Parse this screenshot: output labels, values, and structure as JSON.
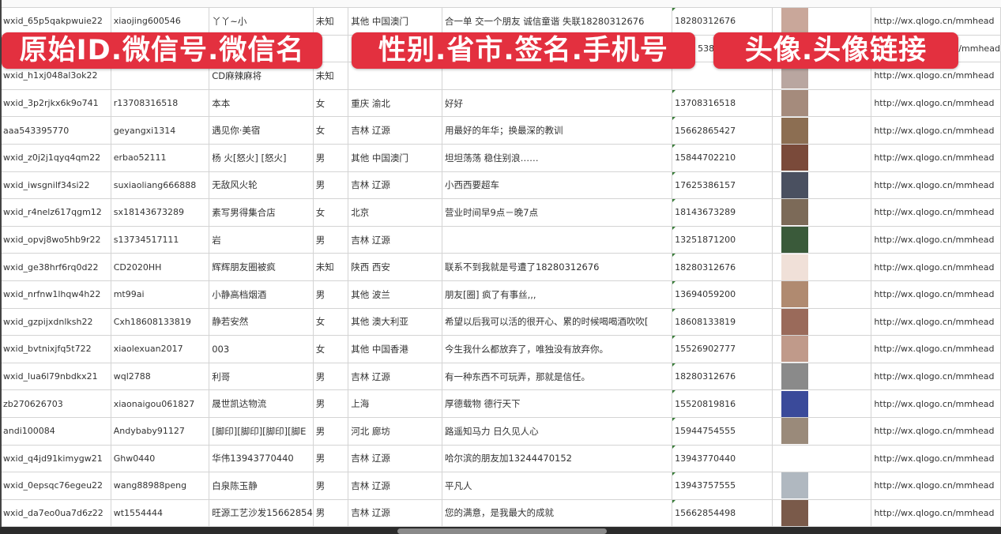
{
  "overlays": [
    "原始ID.微信号.微信名",
    "性别.省市.签名.手机号",
    "头像.头像链接"
  ],
  "colors": {
    "overlay": "#e3303f",
    "grid": "#d4d4d4"
  },
  "rows": [
    {
      "id": "wxid_65p5qakpwuie22",
      "wechat": "xiaojing600546",
      "name": "丫丫~小",
      "gender": "未知",
      "region": "其他 中国澳门",
      "signature": "合一单 交一个朋友 诚信童谐 失联18280312676",
      "phone": "18280312676",
      "avatar": "#c9a79a",
      "link": "http://wx.qlogo.cn/mmhead"
    },
    {
      "id": "",
      "wechat": "",
      "name": "",
      "gender": "",
      "region": "",
      "signature": "",
      "phone": "5386",
      "avatar": "#6a7fb0",
      "link": "/mmhead"
    },
    {
      "id": "wxid_h1xj048al3ok22",
      "wechat": "",
      "name": "CD麻辣麻将",
      "gender": "未知",
      "region": "",
      "signature": "",
      "phone": "",
      "avatar": "#b9a6a0",
      "link": "http://wx.qlogo.cn/mmhead"
    },
    {
      "id": "wxid_3p2rjkx6k9o741",
      "wechat": "r13708316518",
      "name": "本本",
      "gender": "女",
      "region": "重庆 渝北",
      "signature": "好好",
      "phone": "13708316518",
      "avatar": "#a58b7c",
      "link": "http://wx.qlogo.cn/mmhead"
    },
    {
      "id": "aaa543395770",
      "wechat": "geyangxi1314",
      "name": "遇见你·美宿",
      "gender": "女",
      "region": "吉林 辽源",
      "signature": "用最好的年华；换最深的教训",
      "phone": "15662865427",
      "avatar": "#8c6e52",
      "link": "http://wx.qlogo.cn/mmhead"
    },
    {
      "id": "wxid_z0j2j1qyq4qm22",
      "wechat": "erbao52111",
      "name": "杨 火[怒火] [怒火]",
      "gender": "男",
      "region": "其他 中国澳门",
      "signature": "坦坦荡荡 稳住别浪……",
      "phone": "15844702210",
      "avatar": "#7a4a3a",
      "link": "http://wx.qlogo.cn/mmhead"
    },
    {
      "id": "wxid_iwsgnilf34si22",
      "wechat": "suxiaoliang666888",
      "name": "无敌风火轮",
      "gender": "男",
      "region": "吉林 辽源",
      "signature": "小西西要超车",
      "phone": "17625386157",
      "avatar": "#4a5060",
      "link": "http://wx.qlogo.cn/mmhead"
    },
    {
      "id": "wxid_r4nelz617qgm12",
      "wechat": "sx18143673289",
      "name": "素写男得集合店",
      "gender": "女",
      "region": "北京",
      "signature": "营业时间早9点－晚7点",
      "phone": "18143673289",
      "avatar": "#7c6a58",
      "link": "http://wx.qlogo.cn/mmhead"
    },
    {
      "id": "wxid_opvj8wo5hb9r22",
      "wechat": "s13734517111",
      "name": "岩",
      "gender": "男",
      "region": "吉林 辽源",
      "signature": "",
      "phone": "13251871200",
      "avatar": "#3a5a3a",
      "link": "http://wx.qlogo.cn/mmhead"
    },
    {
      "id": "wxid_ge38hrf6rq0d22",
      "wechat": "CD2020HH",
      "name": "辉辉朋友圈被疯",
      "gender": "未知",
      "region": "陕西 西安",
      "signature": "联系不到我就是号遭了18280312676",
      "phone": "18280312676",
      "avatar": "#f0e0d8",
      "link": "http://wx.qlogo.cn/mmhead"
    },
    {
      "id": "wxid_nrfnw1lhqw4h22",
      "wechat": "mt99ai",
      "name": "小静高档烟酒",
      "gender": "男",
      "region": "其他 波兰",
      "signature": "朋友[圈] 疯了有事丝,,,",
      "phone": "13694059200",
      "avatar": "#b08a70",
      "link": "http://wx.qlogo.cn/mmhead"
    },
    {
      "id": "wxid_gzpijxdnlksh22",
      "wechat": "Cxh18608133819",
      "name": "静若安然",
      "gender": "女",
      "region": "其他 澳大利亚",
      "signature": "希望以后我可以活的很开心、累的时候喝喝酒吹吹[",
      "phone": "18608133819",
      "avatar": "#9a6a5a",
      "link": "http://wx.qlogo.cn/mmhead"
    },
    {
      "id": "wxid_bvtnixjfq5t722",
      "wechat": "xiaolexuan2017",
      "name": "003",
      "gender": "女",
      "region": "其他 中国香港",
      "signature": "今生我什么都放弃了，唯独没有放弃你。",
      "phone": "15526902777",
      "avatar": "#c09a8a",
      "link": "http://wx.qlogo.cn/mmhead"
    },
    {
      "id": "wxid_lua6l79nbdkx21",
      "wechat": "wql2788",
      "name": "利哥",
      "gender": "男",
      "region": "吉林 辽源",
      "signature": "有一种东西不可玩弄，那就是信任。",
      "phone": "18280312676",
      "avatar": "#8a8a8a",
      "link": "http://wx.qlogo.cn/mmhead"
    },
    {
      "id": "zb270626703",
      "wechat": "xiaonaigou061827",
      "name": "晟世凯达物流",
      "gender": "男",
      "region": "上海",
      "signature": "厚德载物 德行天下",
      "phone": "15520819816",
      "avatar": "#3a4a9a",
      "link": "http://wx.qlogo.cn/mmhead"
    },
    {
      "id": "andi100084",
      "wechat": "Andybaby91127",
      "name": "[脚印][脚印][脚印][脚E",
      "gender": "男",
      "region": "河北 廊坊",
      "signature": "路遥知马力 日久见人心",
      "phone": "15944754555",
      "avatar": "#9a8a7a",
      "link": "http://wx.qlogo.cn/mmhead"
    },
    {
      "id": "wxid_q4jd91kimygw21",
      "wechat": "Ghw0440",
      "name": "华伟13943770440",
      "gender": "男",
      "region": "吉林 辽源",
      "signature": "哈尔滨的朋友加13244470152",
      "phone": "13943770440",
      "avatar": "#ffffff",
      "link": "http://wx.qlogo.cn/mmhead"
    },
    {
      "id": "wxid_0epsqc76egeu22",
      "wechat": "wang88988peng",
      "name": "白泉陈玉静",
      "gender": "男",
      "region": "吉林 辽源",
      "signature": "平凡人",
      "phone": "13943757555",
      "avatar": "#b0b8c0",
      "link": "http://wx.qlogo.cn/mmhead"
    },
    {
      "id": "wxid_da7eo0ua7d6z22",
      "wechat": "wt1554444",
      "name": "旺源工艺沙发15662854",
      "gender": "男",
      "region": "吉林 辽源",
      "signature": "您的满意，是我最大的成就",
      "phone": "15662854498",
      "avatar": "#7a5a4a",
      "link": "http://wx.qlogo.cn/mmhead"
    }
  ]
}
